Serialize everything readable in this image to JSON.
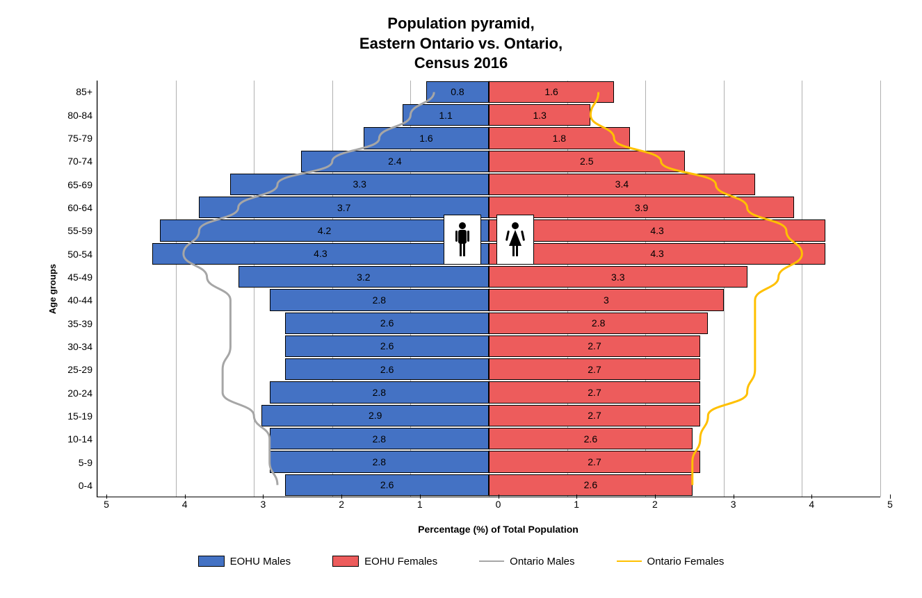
{
  "chart": {
    "type": "population-pyramid",
    "title_lines": [
      "Population pyramid,",
      "Eastern Ontario vs. Ontario,",
      "Census 2016"
    ],
    "title_fontsize": 22,
    "y_label": "Age groups",
    "x_label": "Percentage (%) of Total Population",
    "x_domain": [
      -5,
      5
    ],
    "x_ticks": [
      5,
      4,
      3,
      2,
      1,
      0,
      1,
      2,
      3,
      4,
      5
    ],
    "grid_positions": [
      -5,
      -4,
      -3,
      -2,
      -1,
      0,
      1,
      2,
      3,
      4,
      5
    ],
    "grid_color": "#b0b0b0",
    "background_color": "#ffffff",
    "age_groups": [
      "0-4",
      "5-9",
      "10-14",
      "15-19",
      "20-24",
      "25-29",
      "30-34",
      "35-39",
      "40-44",
      "45-49",
      "50-54",
      "55-59",
      "60-64",
      "65-69",
      "70-74",
      "75-79",
      "80-84",
      "85+"
    ],
    "eohu_males": [
      2.6,
      2.8,
      2.8,
      2.9,
      2.8,
      2.6,
      2.6,
      2.6,
      2.8,
      3.2,
      4.3,
      4.2,
      3.7,
      3.3,
      2.4,
      1.6,
      1.1,
      0.8
    ],
    "eohu_females": [
      2.6,
      2.7,
      2.6,
      2.7,
      2.7,
      2.7,
      2.7,
      2.8,
      3.0,
      3.3,
      4.3,
      4.3,
      3.9,
      3.4,
      2.5,
      1.8,
      1.3,
      1.6
    ],
    "ontario_males": [
      2.7,
      2.8,
      2.8,
      3.0,
      3.4,
      3.4,
      3.3,
      3.3,
      3.3,
      3.6,
      3.9,
      3.7,
      3.2,
      2.7,
      2.0,
      1.4,
      1.0,
      0.7
    ],
    "ontario_females": [
      2.6,
      2.6,
      2.7,
      2.8,
      3.3,
      3.4,
      3.4,
      3.4,
      3.4,
      3.7,
      4.0,
      3.8,
      3.3,
      2.9,
      2.2,
      1.6,
      1.3,
      1.4
    ],
    "male_bar_color": "#4472c4",
    "female_bar_color": "#ed5c5c",
    "ontario_male_line_color": "#a6a6a6",
    "ontario_female_line_color": "#ffc000",
    "line_width": 2,
    "bar_border_color": "#000000",
    "tick_fontsize": 14,
    "label_fontsize": 14,
    "value_fontsize": 14
  },
  "legend": {
    "items": [
      {
        "label": "EOHU Males",
        "type": "box",
        "color": "#4472c4"
      },
      {
        "label": "EOHU Females",
        "type": "box",
        "color": "#ed5c5c"
      },
      {
        "label": "Ontario Males",
        "type": "line",
        "color": "#a6a6a6"
      },
      {
        "label": "Ontario Females",
        "type": "line",
        "color": "#ffc000"
      }
    ]
  }
}
